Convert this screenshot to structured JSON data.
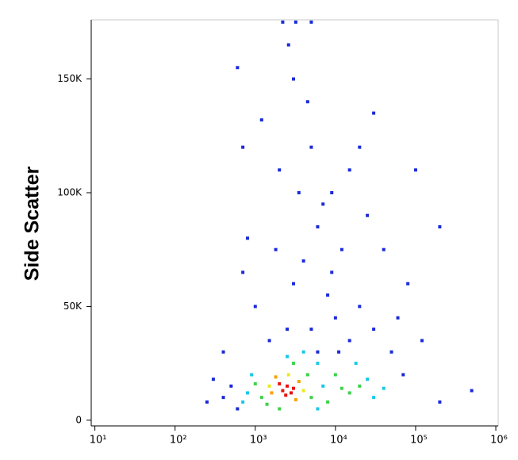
{
  "chart_data": {
    "type": "scatter",
    "y_label": "Side Scatter",
    "xscale": "log",
    "xlim": [
      9,
      1070000
    ],
    "ylim": [
      -2500,
      176000
    ],
    "xticks": [
      {
        "value": 10,
        "label": "10¹"
      },
      {
        "value": 100,
        "label": "10²"
      },
      {
        "value": 1000,
        "label": "10³"
      },
      {
        "value": 10000,
        "label": "10⁴"
      },
      {
        "value": 100000,
        "label": "10⁵"
      },
      {
        "value": 1000000,
        "label": "10⁶"
      }
    ],
    "yticks": [
      0,
      {
        "value": 50000,
        "label": "50K"
      },
      {
        "value": 100000,
        "label": "100K"
      },
      {
        "value": 150000,
        "label": "150K"
      }
    ],
    "series": [
      {
        "color": "#1a2ad8",
        "x": [
          500,
          600,
          400,
          300,
          250,
          5000,
          8000,
          4000,
          6000,
          3000,
          10000,
          15000,
          20000,
          30000,
          50000,
          60000,
          7000,
          3500,
          5000,
          2000,
          12000,
          9000,
          2500,
          1500,
          1000,
          700,
          600,
          4500,
          3000,
          2600,
          20000,
          100000,
          200000,
          500000,
          200000,
          80000,
          1200,
          700,
          400,
          800,
          3200,
          5000,
          2200,
          30000,
          25000,
          40000,
          15000,
          6000,
          11000,
          70000,
          120000,
          1800,
          9000
        ],
        "values": [
          15000,
          5000,
          10000,
          18000,
          8000,
          40000,
          55000,
          70000,
          85000,
          60000,
          45000,
          35000,
          50000,
          40000,
          30000,
          45000,
          95000,
          100000,
          120000,
          110000,
          75000,
          65000,
          40000,
          35000,
          50000,
          65000,
          155000,
          140000,
          150000,
          165000,
          120000,
          110000,
          85000,
          13000,
          8000,
          60000,
          132000,
          120000,
          30000,
          80000,
          175000,
          175000,
          175000,
          135000,
          90000,
          75000,
          110000,
          30000,
          30000,
          20000,
          35000,
          75000,
          100000
        ]
      },
      {
        "color": "#18c8e8",
        "x": [
          800,
          6000,
          7000,
          25000,
          30000,
          900,
          4000,
          2500,
          18000,
          6000,
          700,
          40000
        ],
        "values": [
          12000,
          25000,
          15000,
          18000,
          10000,
          20000,
          30000,
          28000,
          25000,
          5000,
          8000,
          14000
        ]
      },
      {
        "color": "#3cd24a",
        "x": [
          1200,
          1000,
          4500,
          5000,
          1400,
          3000,
          12000,
          15000,
          20000,
          10000,
          8000,
          2000
        ],
        "values": [
          10000,
          16000,
          20000,
          10000,
          7000,
          25000,
          14000,
          12000,
          15000,
          20000,
          8000,
          5000
        ]
      },
      {
        "color": "#e8ea20",
        "x": [
          2600,
          1500,
          4000
        ],
        "values": [
          20000,
          15000,
          13000
        ]
      },
      {
        "color": "#f6a300",
        "x": [
          1600,
          3500,
          1800,
          3200
        ],
        "values": [
          12000,
          17000,
          19000,
          9000
        ]
      },
      {
        "color": "#e8120c",
        "x": [
          2200,
          2500,
          2800,
          2000,
          3000,
          2400
        ],
        "values": [
          13000,
          15000,
          12000,
          16000,
          14000,
          11000
        ]
      }
    ]
  }
}
